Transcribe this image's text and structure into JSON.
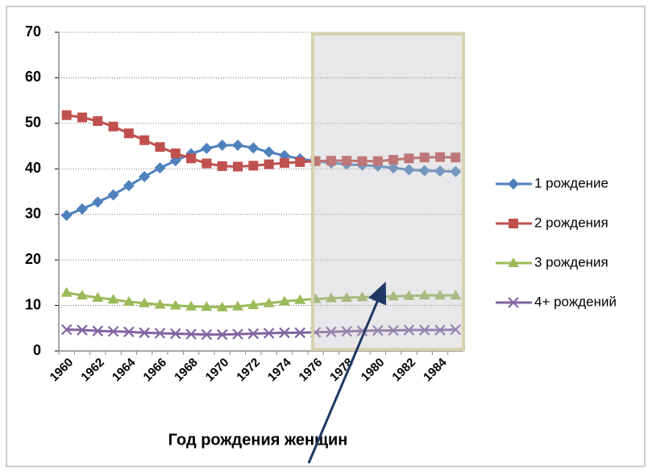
{
  "chart_data": {
    "type": "line",
    "x_label": "Год рождения женщин",
    "categories": [
      "1960",
      null,
      "1962",
      null,
      "1964",
      null,
      "1966",
      null,
      "1968",
      null,
      "1970",
      null,
      "1972",
      null,
      "1974",
      null,
      "1976",
      null,
      "1978",
      null,
      "1980",
      null,
      "1982",
      null,
      "1984",
      null
    ],
    "ylim": [
      0,
      70
    ],
    "yticks": [
      0,
      10,
      20,
      30,
      40,
      50,
      60,
      70
    ],
    "grid": true,
    "legend": "right",
    "series": [
      {
        "name": "1 рождение",
        "color": "#4f81bd",
        "marker": "diamond",
        "values": [
          29.8,
          31.2,
          32.7,
          34.3,
          36.3,
          38.3,
          40.2,
          41.8,
          43.3,
          44.5,
          45.2,
          45.2,
          44.6,
          43.7,
          42.9,
          42.2,
          41.7,
          41.3,
          41.0,
          40.8,
          40.6,
          40.2,
          39.8,
          39.6,
          39.5,
          39.4
        ]
      },
      {
        "name": "2 рождения",
        "color": "#c0504d",
        "marker": "square",
        "values": [
          51.8,
          51.3,
          50.5,
          49.3,
          47.8,
          46.3,
          44.8,
          43.4,
          42.3,
          41.2,
          40.6,
          40.5,
          40.7,
          41.0,
          41.3,
          41.5,
          41.7,
          41.8,
          41.8,
          41.7,
          41.7,
          42.0,
          42.3,
          42.5,
          42.6,
          42.5
        ]
      },
      {
        "name": "3 рождения",
        "color": "#9bbb59",
        "marker": "triangle",
        "values": [
          12.8,
          12.2,
          11.7,
          11.3,
          10.8,
          10.5,
          10.2,
          10.0,
          9.8,
          9.7,
          9.6,
          9.8,
          10.1,
          10.5,
          10.9,
          11.2,
          11.4,
          11.6,
          11.7,
          11.8,
          11.9,
          12.0,
          12.1,
          12.2,
          12.2,
          12.2
        ]
      },
      {
        "name": "4+  рождений",
        "color": "#8064a2",
        "marker": "x",
        "values": [
          4.7,
          4.6,
          4.4,
          4.3,
          4.2,
          4.0,
          3.9,
          3.8,
          3.7,
          3.6,
          3.6,
          3.7,
          3.8,
          3.9,
          4.0,
          4.0,
          4.1,
          4.2,
          4.3,
          4.4,
          4.5,
          4.5,
          4.6,
          4.6,
          4.6,
          4.7
        ]
      }
    ]
  }
}
